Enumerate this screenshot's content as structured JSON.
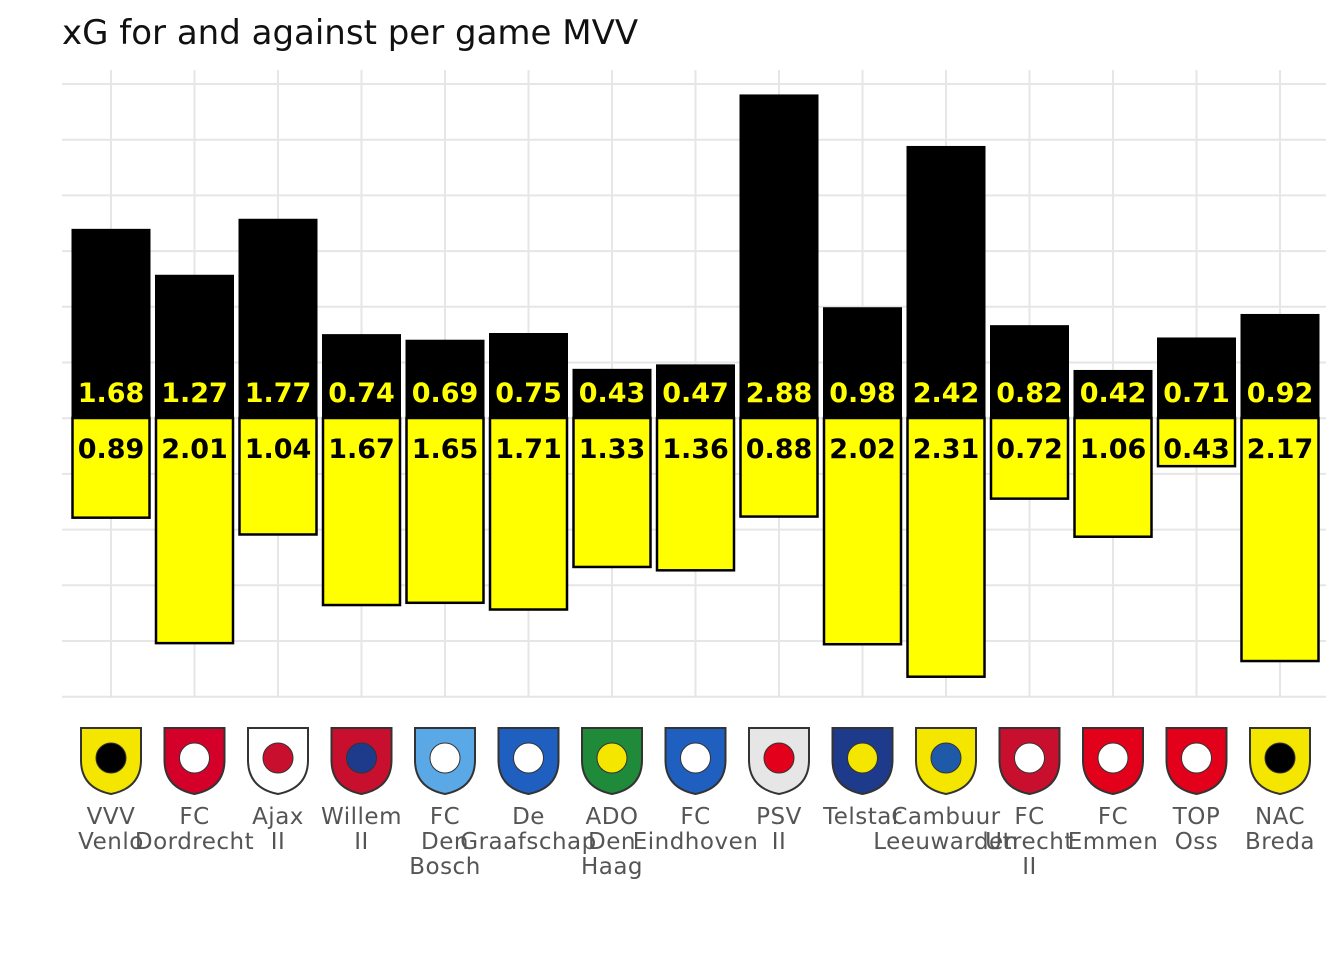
{
  "chart_data": {
    "type": "bar",
    "title": "xG for and against per game MVV",
    "xlabel": "",
    "ylabel": "",
    "grid": true,
    "legend": "none",
    "categories": [
      "VVV Venlo",
      "FC Dordrecht",
      "Ajax II",
      "Willem II",
      "FC Den Bosch",
      "De Graafschap",
      "ADO Den Haag",
      "FC Eindhoven",
      "PSV II",
      "Telstar",
      "Cambuur Leeuwarden",
      "FC Utrecht II",
      "FC Emmen",
      "TOP Oss",
      "NAC Breda"
    ],
    "series": [
      {
        "values": [
          1.68,
          1.27,
          1.77,
          0.74,
          0.69,
          0.75,
          0.43,
          0.47,
          2.88,
          0.98,
          2.42,
          0.82,
          0.42,
          0.71,
          0.92
        ]
      },
      {
        "values": [
          0.89,
          2.01,
          1.04,
          1.67,
          1.65,
          1.71,
          1.33,
          1.36,
          0.88,
          2.02,
          2.31,
          0.72,
          1.06,
          0.43,
          2.17
        ]
      }
    ],
    "colors": {
      "for": "#000000",
      "against": "#ffff00",
      "for_label": "#ffff00",
      "against_label": "#000000"
    },
    "logo_icons": [
      "vvv-venlo-logo-icon",
      "fc-dordrecht-logo-icon",
      "ajax-logo-icon",
      "willem-ii-logo-icon",
      "fc-den-bosch-logo-icon",
      "de-graafschap-logo-icon",
      "ado-den-haag-logo-icon",
      "fc-eindhoven-logo-icon",
      "psv-logo-icon",
      "telstar-logo-icon",
      "cambuur-logo-icon",
      "fc-utrecht-logo-icon",
      "fc-emmen-logo-icon",
      "top-oss-logo-icon",
      "nac-breda-logo-icon"
    ]
  }
}
